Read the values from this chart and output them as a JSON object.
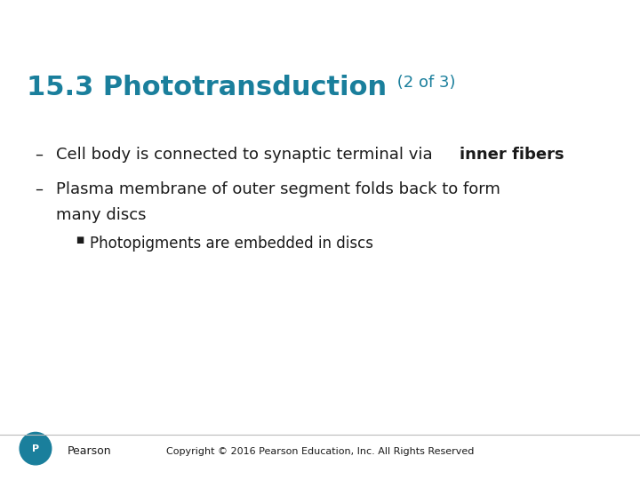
{
  "title_part1": "15.3 Phototransduction",
  "title_part2": " (2 of 3)",
  "title_color": "#1a7f9c",
  "title_fontsize": 22,
  "title_part2_fontsize": 13,
  "background_color": "#ffffff",
  "bullet1_normal": "Cell body is connected to synaptic terminal via ",
  "bullet1_bold": "inner fibers",
  "bullet2_line1": "Plasma membrane of outer segment folds back to form",
  "bullet2_line2": "many discs",
  "sub_bullet": "Photopigments are embedded in discs",
  "bullet_color": "#1a1a1a",
  "bullet_fontsize": 13,
  "sub_bullet_fontsize": 12,
  "copyright": "Copyright © 2016 Pearson Education, Inc. All Rights Reserved",
  "copyright_fontsize": 8,
  "pearson_color": "#1a7f9c",
  "pearson_text_fontsize": 9
}
